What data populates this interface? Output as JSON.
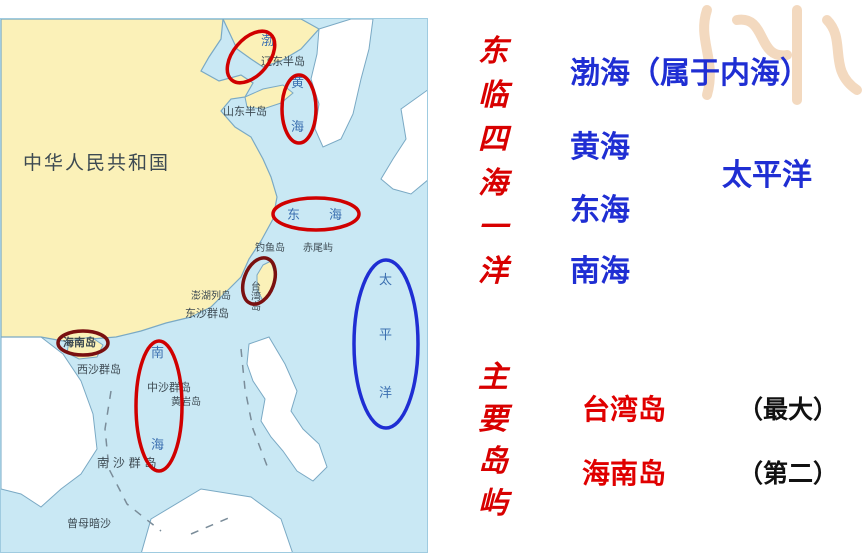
{
  "map": {
    "country_label": "中华人民共和国",
    "peninsulas": {
      "liaodong": "辽东半岛",
      "shandong": "山东半岛"
    },
    "seas": {
      "bohai": "渤",
      "huanghai": [
        "黄",
        "海"
      ],
      "donghai": [
        "东",
        "海"
      ],
      "nanhai": [
        "南",
        "海"
      ],
      "pacific": [
        "太",
        "平",
        "洋"
      ]
    },
    "islands": {
      "diaoyu": "钓鱼岛",
      "chiwei": "赤尾屿",
      "taiwan": "台湾岛",
      "penghu": "澎湖列岛",
      "dongsha": "东沙群岛",
      "hainan": "海南岛",
      "xisha": "西沙群岛",
      "zhongsha": "中沙群岛",
      "huangyan": "黄岩岛",
      "nansha": "南 沙 群 岛",
      "zengmu": "曾母暗沙"
    },
    "colors": {
      "sea": "#c9e8f4",
      "land": "#fbf1b8",
      "neighbor_land": "#ffffff",
      "red_ring": "#d00000",
      "blue_ring": "#1f2ed3",
      "dark_ring": "#7a1010"
    }
  },
  "title_vertical_1": [
    "东",
    "临",
    "四",
    "海",
    "一",
    "洋"
  ],
  "title_vertical_2": [
    "主",
    "要",
    "岛",
    "屿"
  ],
  "seas_list": [
    "渤海（属于内海）",
    "黄海",
    "东海",
    "南海"
  ],
  "ocean_label": "太平洋",
  "islands_list": [
    {
      "name": "台湾岛",
      "note": "（最大）"
    },
    {
      "name": "海南岛",
      "note": "（第二）"
    }
  ]
}
